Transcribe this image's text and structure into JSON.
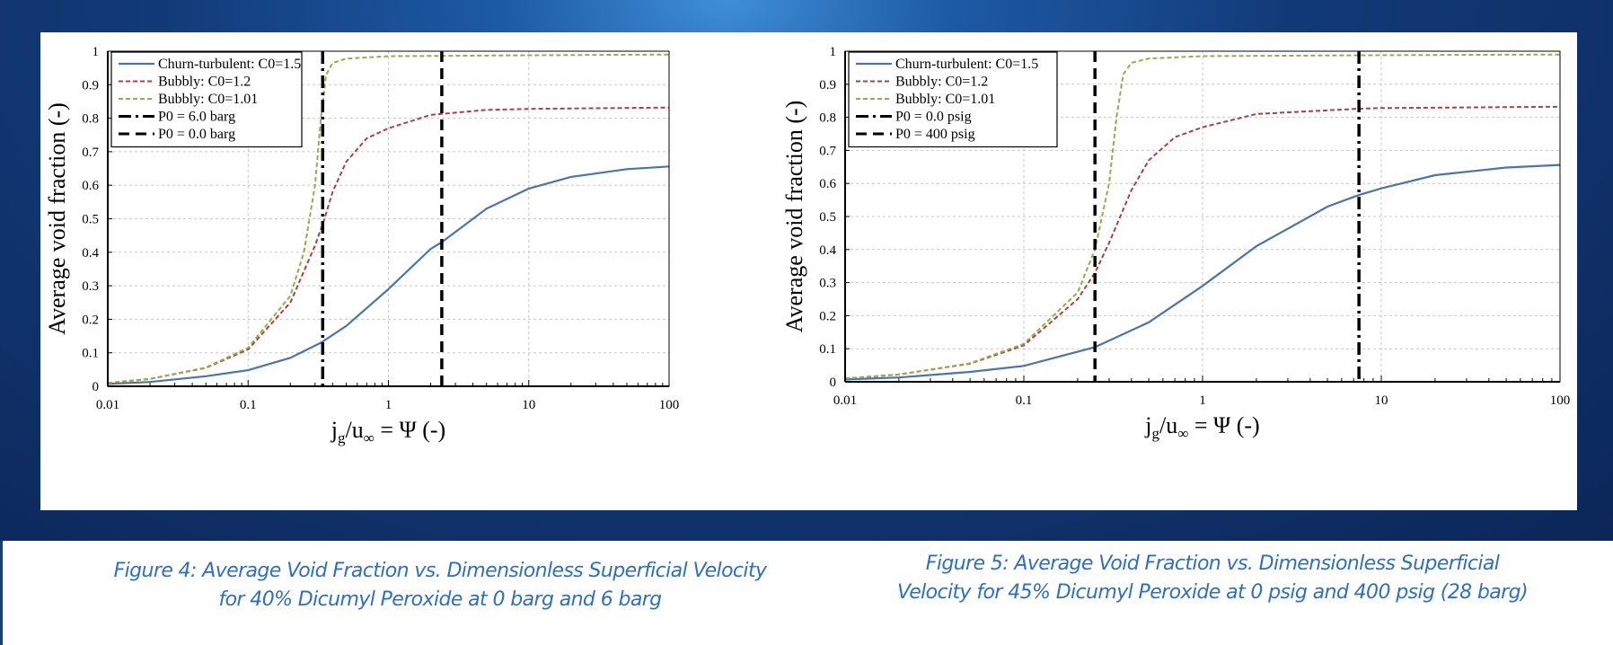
{
  "captions": {
    "fig4_line1": "Figure 4:  Average Void Fraction vs. Dimensionless Superficial Velocity",
    "fig4_line2": "for 40% Dicumyl Peroxide at 0 barg and 6 barg",
    "fig5_line1": "Figure 5:  Average Void Fraction vs. Dimensionless Superficial",
    "fig5_line2": "Velocity for 45% Dicumyl Peroxide at 0 psig and 400 psig (28 barg)"
  },
  "chart_data": [
    {
      "type": "line",
      "title": "",
      "ylabel": "Average void fraction (-)",
      "xlabel_parts": [
        "j",
        "g",
        "/u",
        "∞",
        " = Ψ (-)"
      ],
      "xscale": "log",
      "xlim": [
        0.01,
        100
      ],
      "ylim": [
        0,
        1
      ],
      "xticks": [
        "0.01",
        "0.1",
        "1",
        "10",
        "100"
      ],
      "yticks": [
        "0",
        "0.1",
        "0.2",
        "0.3",
        "0.4",
        "0.5",
        "0.6",
        "0.7",
        "0.8",
        "0.9",
        "1"
      ],
      "grid": true,
      "legend_position": "top-left",
      "series": [
        {
          "name": "Churn-turbulent: C0=1.5",
          "color": "#4a74ac",
          "style": "solid",
          "x": [
            0.01,
            0.02,
            0.05,
            0.1,
            0.2,
            0.33,
            0.5,
            1,
            2,
            2.4,
            5,
            10,
            20,
            50,
            100
          ],
          "y": [
            0.007,
            0.013,
            0.03,
            0.048,
            0.085,
            0.13,
            0.18,
            0.29,
            0.41,
            0.43,
            0.53,
            0.59,
            0.625,
            0.648,
            0.656
          ]
        },
        {
          "name": "Bubbly: C0=1.2",
          "color": "#b04040",
          "style": "dashed",
          "x": [
            0.01,
            0.02,
            0.05,
            0.1,
            0.2,
            0.3,
            0.35,
            0.4,
            0.5,
            0.7,
            1,
            2,
            5,
            10,
            100
          ],
          "y": [
            0.01,
            0.022,
            0.055,
            0.11,
            0.25,
            0.42,
            0.5,
            0.58,
            0.67,
            0.74,
            0.77,
            0.81,
            0.825,
            0.828,
            0.832
          ]
        },
        {
          "name": "Bubbly: C0=1.01",
          "color": "#93ad4e",
          "style": "dashed",
          "x": [
            0.01,
            0.02,
            0.05,
            0.1,
            0.2,
            0.25,
            0.3,
            0.33,
            0.36,
            0.4,
            0.5,
            1,
            10,
            100
          ],
          "y": [
            0.01,
            0.022,
            0.056,
            0.115,
            0.27,
            0.4,
            0.6,
            0.8,
            0.93,
            0.965,
            0.978,
            0.985,
            0.988,
            0.99
          ]
        },
        {
          "name": "P0 = 6.0 barg",
          "color": "#000000",
          "style": "dashdot",
          "vline_x": 0.34
        },
        {
          "name": "P0 = 0.0 barg",
          "color": "#000000",
          "style": "dash",
          "vline_x": 2.4
        }
      ]
    },
    {
      "type": "line",
      "title": "",
      "ylabel": "Average void fraction (-)",
      "xlabel_parts": [
        "j",
        "g",
        "/u",
        "∞",
        " = Ψ (-)"
      ],
      "xscale": "log",
      "xlim": [
        0.01,
        100
      ],
      "ylim": [
        0,
        1
      ],
      "xticks": [
        "0.01",
        "0.1",
        "1",
        "10",
        "100"
      ],
      "yticks": [
        "0",
        "0.1",
        "0.2",
        "0.3",
        "0.4",
        "0.5",
        "0.6",
        "0.7",
        "0.8",
        "0.9",
        "1"
      ],
      "grid": true,
      "legend_position": "top-left",
      "series": [
        {
          "name": "Churn-turbulent: C0=1.5",
          "color": "#4a74ac",
          "style": "solid",
          "x": [
            0.01,
            0.02,
            0.05,
            0.1,
            0.25,
            0.5,
            1,
            2,
            5,
            7.5,
            10,
            20,
            50,
            100
          ],
          "y": [
            0.007,
            0.013,
            0.03,
            0.048,
            0.105,
            0.18,
            0.29,
            0.41,
            0.53,
            0.565,
            0.585,
            0.625,
            0.648,
            0.656
          ]
        },
        {
          "name": "Bubbly: C0=1.2",
          "color": "#b04040",
          "style": "dashed",
          "x": [
            0.01,
            0.02,
            0.05,
            0.1,
            0.2,
            0.25,
            0.3,
            0.4,
            0.5,
            0.7,
            1,
            2,
            7.5,
            10,
            100
          ],
          "y": [
            0.01,
            0.022,
            0.055,
            0.11,
            0.25,
            0.33,
            0.42,
            0.58,
            0.67,
            0.74,
            0.77,
            0.81,
            0.826,
            0.828,
            0.832
          ]
        },
        {
          "name": "Bubbly: C0=1.01",
          "color": "#93ad4e",
          "style": "dashed",
          "x": [
            0.01,
            0.02,
            0.05,
            0.1,
            0.2,
            0.25,
            0.3,
            0.33,
            0.36,
            0.4,
            0.5,
            1,
            10,
            100
          ],
          "y": [
            0.01,
            0.022,
            0.056,
            0.115,
            0.27,
            0.4,
            0.6,
            0.8,
            0.93,
            0.965,
            0.978,
            0.985,
            0.988,
            0.99
          ]
        },
        {
          "name": "P0 = 0.0 psig",
          "color": "#000000",
          "style": "dashdot",
          "vline_x": 7.5
        },
        {
          "name": "P0 = 400 psig",
          "color": "#000000",
          "style": "dash",
          "vline_x": 0.25
        }
      ]
    }
  ]
}
